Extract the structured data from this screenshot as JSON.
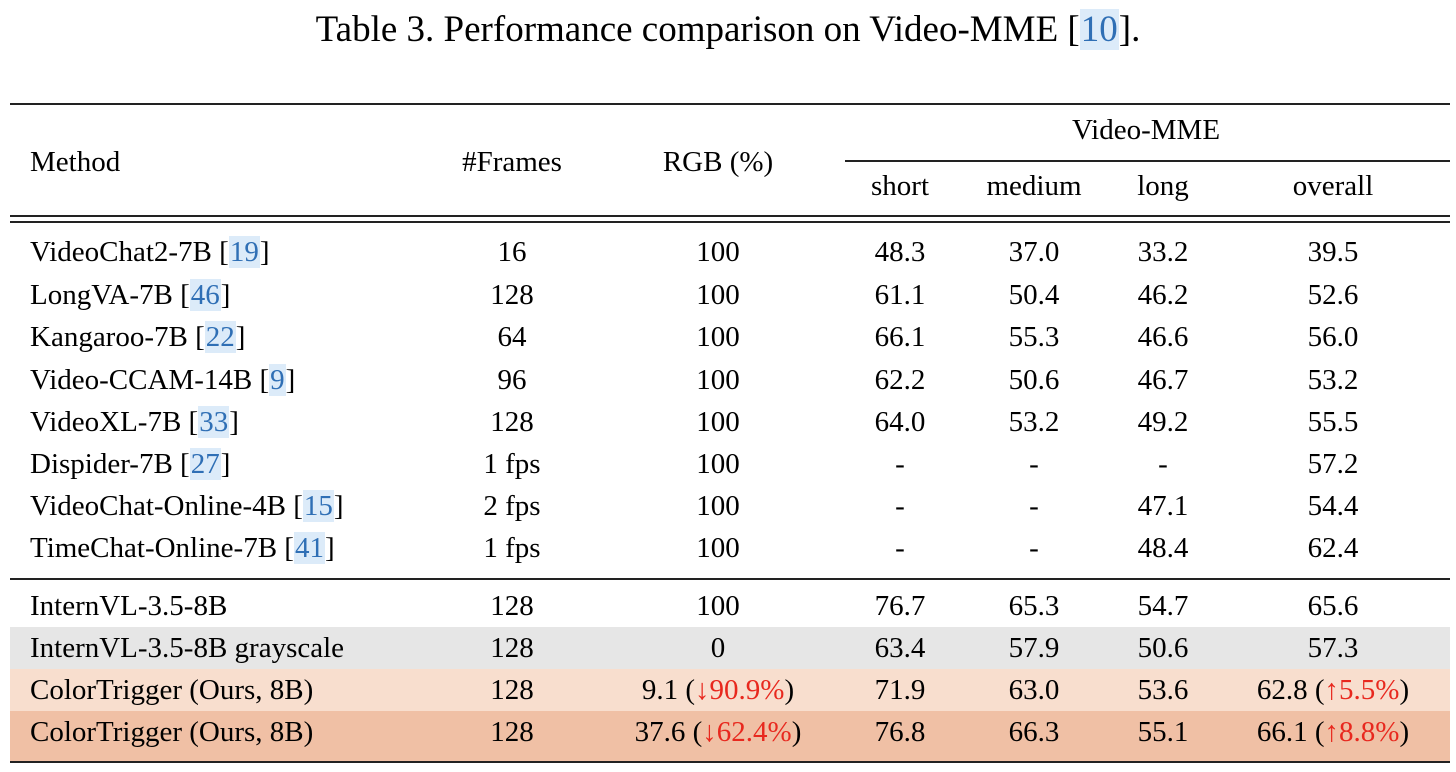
{
  "caption": {
    "prefix": "Table 3. Performance comparison on Video-MME [",
    "cite": "10",
    "suffix": "]."
  },
  "header": {
    "method": "Method",
    "frames": "#Frames",
    "rgb": "RGB (%)",
    "group": "Video-MME",
    "short": "short",
    "medium": "medium",
    "long": "long",
    "overall": "overall"
  },
  "colors": {
    "cite": "#2f6fb5",
    "cite_bg": "#dcebf9",
    "delta": "#e8281e",
    "grayscale_row": "#e6e6e6",
    "ours_light": "#f8dece",
    "ours_dark": "#f0c0a5"
  },
  "rows": [
    {
      "method": "VideoChat2-7B",
      "cite": "19",
      "frames": "16",
      "rgb": "100",
      "rgb_delta": "",
      "short": "48.3",
      "medium": "37.0",
      "long": "33.2",
      "overall": "39.5",
      "overall_delta": ""
    },
    {
      "method": "LongVA-7B",
      "cite": "46",
      "frames": "128",
      "rgb": "100",
      "rgb_delta": "",
      "short": "61.1",
      "medium": "50.4",
      "long": "46.2",
      "overall": "52.6",
      "overall_delta": ""
    },
    {
      "method": "Kangaroo-7B",
      "cite": "22",
      "frames": "64",
      "rgb": "100",
      "rgb_delta": "",
      "short": "66.1",
      "medium": "55.3",
      "long": "46.6",
      "overall": "56.0",
      "overall_delta": ""
    },
    {
      "method": "Video-CCAM-14B",
      "cite": "9",
      "frames": "96",
      "rgb": "100",
      "rgb_delta": "",
      "short": "62.2",
      "medium": "50.6",
      "long": "46.7",
      "overall": "53.2",
      "overall_delta": ""
    },
    {
      "method": "VideoXL-7B",
      "cite": "33",
      "frames": "128",
      "rgb": "100",
      "rgb_delta": "",
      "short": "64.0",
      "medium": "53.2",
      "long": "49.2",
      "overall": "55.5",
      "overall_delta": ""
    },
    {
      "method": "Dispider-7B",
      "cite": "27",
      "frames": "1 fps",
      "rgb": "100",
      "rgb_delta": "",
      "short": "-",
      "medium": "-",
      "long": "-",
      "overall": "57.2",
      "overall_delta": ""
    },
    {
      "method": "VideoChat-Online-4B",
      "cite": "15",
      "frames": "2 fps",
      "rgb": "100",
      "rgb_delta": "",
      "short": "-",
      "medium": "-",
      "long": "47.1",
      "overall": "54.4",
      "overall_delta": ""
    },
    {
      "method": "TimeChat-Online-7B",
      "cite": "41",
      "frames": "1 fps",
      "rgb": "100",
      "rgb_delta": "",
      "short": "-",
      "medium": "-",
      "long": "48.4",
      "overall": "62.4",
      "overall_delta": ""
    },
    {
      "method": "InternVL-3.5-8B",
      "cite": "",
      "frames": "128",
      "rgb": "100",
      "rgb_delta": "",
      "short": "76.7",
      "medium": "65.3",
      "long": "54.7",
      "overall": "65.6",
      "overall_delta": ""
    },
    {
      "method": "InternVL-3.5-8B grayscale",
      "cite": "",
      "frames": "128",
      "rgb": "0",
      "rgb_delta": "",
      "short": "63.4",
      "medium": "57.9",
      "long": "50.6",
      "overall": "57.3",
      "overall_delta": ""
    },
    {
      "method": "ColorTrigger (Ours, 8B)",
      "cite": "",
      "frames": "128",
      "rgb": "9.1",
      "rgb_delta": "↓90.9%",
      "short": "71.9",
      "medium": "63.0",
      "long": "53.6",
      "overall": "62.8",
      "overall_delta": "↑5.5%"
    },
    {
      "method": "ColorTrigger (Ours, 8B)",
      "cite": "",
      "frames": "128",
      "rgb": "37.6",
      "rgb_delta": "↓62.4%",
      "short": "76.8",
      "medium": "66.3",
      "long": "55.1",
      "overall": "66.1",
      "overall_delta": "↑8.8%"
    }
  ]
}
